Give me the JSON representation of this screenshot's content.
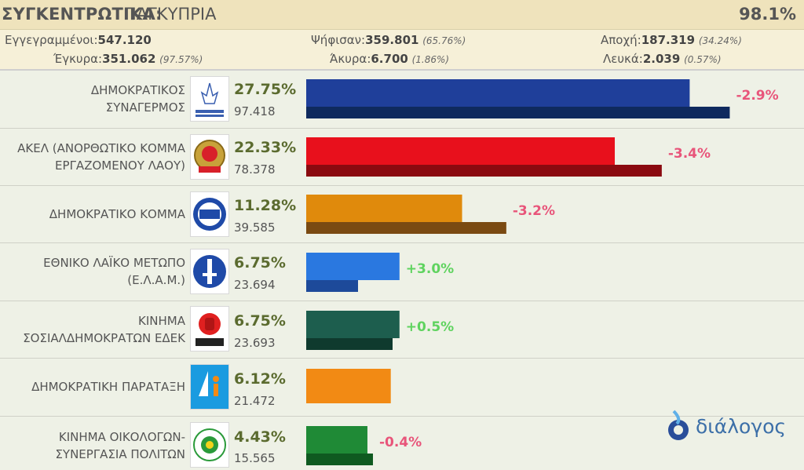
{
  "header": {
    "title_bold": "ΣΥΓΚΕΝΤΡΩΤΙΚΑ:",
    "title_region": "ΠΑΓΚΥΠΡΙΑ",
    "counted_pct": "98.1%"
  },
  "stats": {
    "registered_label": "Εγγεγραμμένοι:",
    "registered_value": "547.120",
    "voted_label": "Ψήφισαν:",
    "voted_value": "359.801",
    "voted_pct": "(65.76%)",
    "abstention_label": "Αποχή:",
    "abstention_value": "187.319",
    "abstention_pct": "(34.24%)",
    "valid_label": "Έγκυρα:",
    "valid_value": "351.062",
    "valid_pct": "(97.57%)",
    "invalid_label": "Άκυρα:",
    "invalid_value": "6.700",
    "invalid_pct": "(1.86%)",
    "blank_label": "Λευκά:",
    "blank_value": "2.039",
    "blank_pct": "(0.57%)"
  },
  "brand": {
    "name": "διάλογος",
    "icon": "dialogos-drop-logo"
  },
  "colors": {
    "positive": "#5fd35f",
    "negative": "#e8557a"
  },
  "chart_data": {
    "type": "bar",
    "orientation": "horizontal",
    "categories": [
      "ΔΗΜΟΚΡΑΤΙΚΟΣ ΣΥΝΑΓΕΡΜΟΣ",
      "ΑΚΕΛ (ΑΝΟΡΘΩΤΙΚΟ ΚΟΜΜΑ ΕΡΓΑΖΟΜΕΝΟΥ ΛΑΟΥ)",
      "ΔΗΜΟΚΡΑΤΙΚΟ ΚΟΜΜΑ",
      "ΕΘΝΙΚΟ ΛΑΪΚΟ ΜΕΤΩΠΟ (Ε.Λ.Α.Μ.)",
      "ΚΙΝΗΜΑ ΣΟΣΙΑΛΔΗΜΟΚΡΑΤΩΝ ΕΔΕΚ",
      "ΔΗΜΟΚΡΑΤΙΚΗ ΠΑΡΑΤΑΞΗ",
      "ΚΙΝΗΜΑ ΟΙΚΟΛΟΓΩΝ- ΣΥΝΕΡΓΑΣΙΑ ΠΟΛΙΤΩΝ"
    ],
    "series": [
      {
        "values": [
          27.75,
          22.33,
          11.28,
          6.75,
          6.75,
          6.12,
          4.43
        ]
      },
      {
        "values": [
          30.65,
          25.73,
          14.48,
          3.75,
          6.25,
          null,
          4.83
        ]
      }
    ],
    "xlim": [
      0,
      35
    ],
    "parties": [
      {
        "name_lines": [
          "ΔΗΜΟΚΡΑΤΙΚΟΣ",
          "ΣΥΝΑΓΕΡΜΟΣ"
        ],
        "pct": "27.75%",
        "votes": "97.418",
        "change": "-2.9%",
        "color": "#1f3f9a",
        "prev_color": "#0f2a5e",
        "logo": "disy-logo"
      },
      {
        "name_lines": [
          "ΑΚΕΛ (ΑΝΟΡΘΩΤΙΚΟ ΚΟΜΜΑ",
          "ΕΡΓΑΖΟΜΕΝΟΥ ΛΑΟΥ)"
        ],
        "pct": "22.33%",
        "votes": "78.378",
        "change": "-3.4%",
        "color": "#e8101c",
        "prev_color": "#8a0a10",
        "logo": "akel-logo"
      },
      {
        "name_lines": [
          "ΔΗΜΟΚΡΑΤΙΚΟ ΚΟΜΜΑ"
        ],
        "pct": "11.28%",
        "votes": "39.585",
        "change": "-3.2%",
        "color": "#e08a0c",
        "prev_color": "#7a4a12",
        "logo": "diko-logo"
      },
      {
        "name_lines": [
          "ΕΘΝΙΚΟ ΛΑΪΚΟ ΜΕΤΩΠΟ",
          "(Ε.Λ.Α.Μ.)"
        ],
        "pct": "6.75%",
        "votes": "23.694",
        "change": "+3.0%",
        "color": "#2a78e0",
        "prev_color": "#1d4a9a",
        "logo": "elam-logo"
      },
      {
        "name_lines": [
          "ΚΙΝΗΜΑ",
          "ΣΟΣΙΑΛΔΗΜΟΚΡΑΤΩΝ ΕΔΕΚ"
        ],
        "pct": "6.75%",
        "votes": "23.693",
        "change": "+0.5%",
        "color": "#1d5e4e",
        "prev_color": "#0f3a2e",
        "logo": "edek-logo"
      },
      {
        "name_lines": [
          "ΔΗΜΟΚΡΑΤΙΚΗ ΠΑΡΑΤΑΞΗ"
        ],
        "pct": "6.12%",
        "votes": "21.472",
        "change": "",
        "color": "#f28a14",
        "prev_color": "",
        "logo": "dipa-logo"
      },
      {
        "name_lines": [
          "ΚΙΝΗΜΑ ΟΙΚΟΛΟΓΩΝ-",
          "ΣΥΝΕΡΓΑΣΙΑ ΠΟΛΙΤΩΝ"
        ],
        "pct": "4.43%",
        "votes": "15.565",
        "change": "-0.4%",
        "color": "#1f8a36",
        "prev_color": "#0f5a20",
        "logo": "greens-logo"
      }
    ]
  }
}
